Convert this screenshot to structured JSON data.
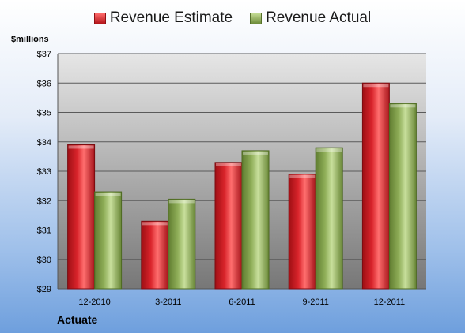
{
  "legend": {
    "estimate_label": "Revenue Estimate",
    "actual_label": "Revenue Actual"
  },
  "colors": {
    "estimate": "#d9242b",
    "actual": "#8fae58",
    "plot_top": "#e6e6e6",
    "plot_bottom": "#777777"
  },
  "chart_data": {
    "type": "bar",
    "categories": [
      "12-2010",
      "3-2011",
      "6-2011",
      "9-2011",
      "12-2011"
    ],
    "series": [
      {
        "name": "Revenue Estimate",
        "values": [
          33.9,
          31.3,
          33.3,
          32.9,
          36.0
        ]
      },
      {
        "name": "Revenue Actual",
        "values": [
          32.3,
          32.05,
          33.7,
          33.8,
          35.3
        ]
      }
    ],
    "ylabel": "$millions",
    "ylim": [
      29,
      37
    ],
    "yticks": [
      "$29",
      "$30",
      "$31",
      "$32",
      "$33",
      "$34",
      "$35",
      "$36",
      "$37"
    ],
    "grid": true,
    "legend_position": "top",
    "footer": "Actuate"
  }
}
